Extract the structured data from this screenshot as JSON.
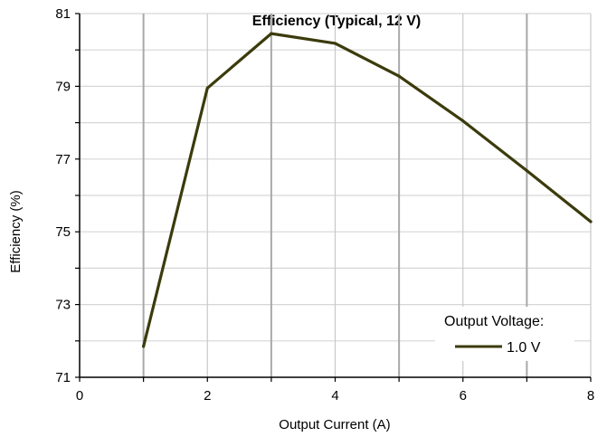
{
  "chart_data": {
    "type": "line",
    "title": "Efficiency (Typical, 12 V)",
    "xlabel": "Output Current (A)",
    "ylabel": "Efficiency (%)",
    "xlim": [
      0,
      8
    ],
    "ylim": [
      71,
      81
    ],
    "x_ticks": [
      0,
      2,
      4,
      6,
      8
    ],
    "y_ticks": [
      71,
      73,
      75,
      77,
      79,
      81
    ],
    "grid": true,
    "legend": {
      "title": "Output Voltage:",
      "placement": "bottom-right"
    },
    "series": [
      {
        "name": "1.0 V",
        "color": "#3b3b0c",
        "x": [
          1,
          2,
          3,
          4,
          5,
          6,
          7,
          8
        ],
        "y": [
          71.85,
          78.95,
          80.45,
          80.18,
          79.28,
          78.05,
          76.68,
          75.28
        ]
      }
    ]
  }
}
